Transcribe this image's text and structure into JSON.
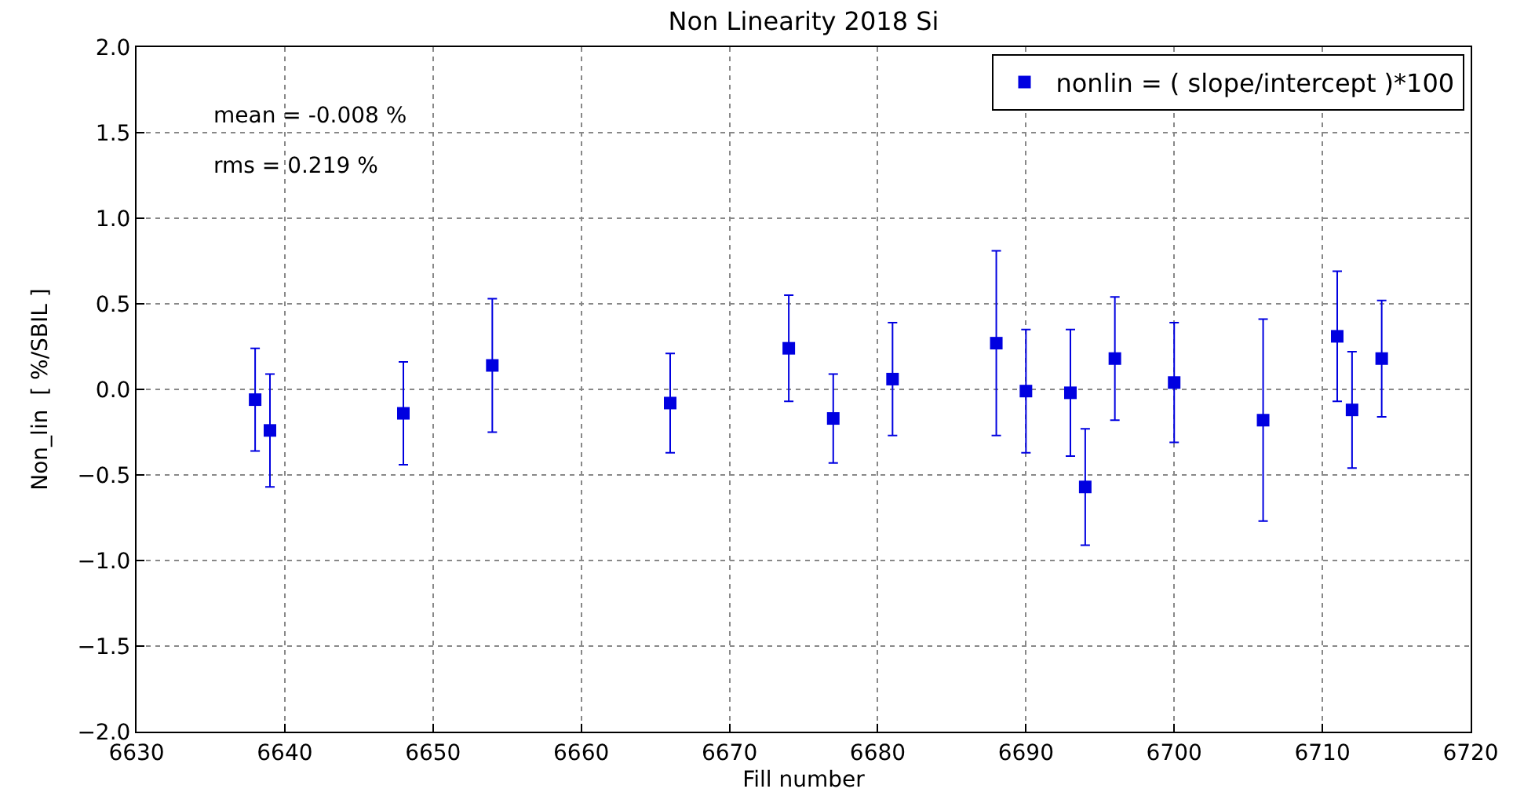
{
  "chart_data": {
    "type": "scatter",
    "title": "Non Linearity 2018 Si",
    "xlabel": "Fill number",
    "ylabel": "Non_lin  [ %/SBIL ]",
    "x": [
      6638,
      6639,
      6648,
      6654,
      6666,
      6674,
      6677,
      6681,
      6688,
      6690,
      6693,
      6694,
      6696,
      6700,
      6706,
      6711,
      6712,
      6714
    ],
    "series": [
      {
        "name": "nonlin = ( slope/intercept )*100",
        "color": "#0000e0",
        "marker": "square",
        "values": [
          -0.06,
          -0.24,
          -0.14,
          0.14,
          -0.08,
          0.24,
          -0.17,
          0.06,
          0.27,
          -0.01,
          -0.02,
          -0.57,
          0.18,
          0.04,
          -0.18,
          0.31,
          -0.12,
          0.18
        ],
        "errors": [
          0.3,
          0.33,
          0.3,
          0.39,
          0.29,
          0.31,
          0.26,
          0.33,
          0.54,
          0.36,
          0.37,
          0.34,
          0.36,
          0.35,
          0.59,
          0.38,
          0.34,
          0.34
        ]
      }
    ],
    "xlim": [
      6630,
      6720
    ],
    "xticks": [
      6630,
      6640,
      6650,
      6660,
      6670,
      6680,
      6690,
      6700,
      6710,
      6720
    ],
    "ylim": [
      -2.0,
      2.0
    ],
    "yticks": [
      {
        "value": -2.0,
        "label": "−2.0"
      },
      {
        "value": -1.5,
        "label": "−1.5"
      },
      {
        "value": -1.0,
        "label": "−1.0"
      },
      {
        "value": -0.5,
        "label": "−0.5"
      },
      {
        "value": 0.0,
        "label": "0.0"
      },
      {
        "value": 0.5,
        "label": "0.5"
      },
      {
        "value": 1.0,
        "label": "1.0"
      },
      {
        "value": 1.5,
        "label": "1.5"
      },
      {
        "value": 2.0,
        "label": "2.0"
      }
    ],
    "annotations": [
      "mean = -0.008 %",
      "rms = 0.219 %"
    ],
    "grid": true,
    "legend": "top right",
    "line_style": "none"
  }
}
